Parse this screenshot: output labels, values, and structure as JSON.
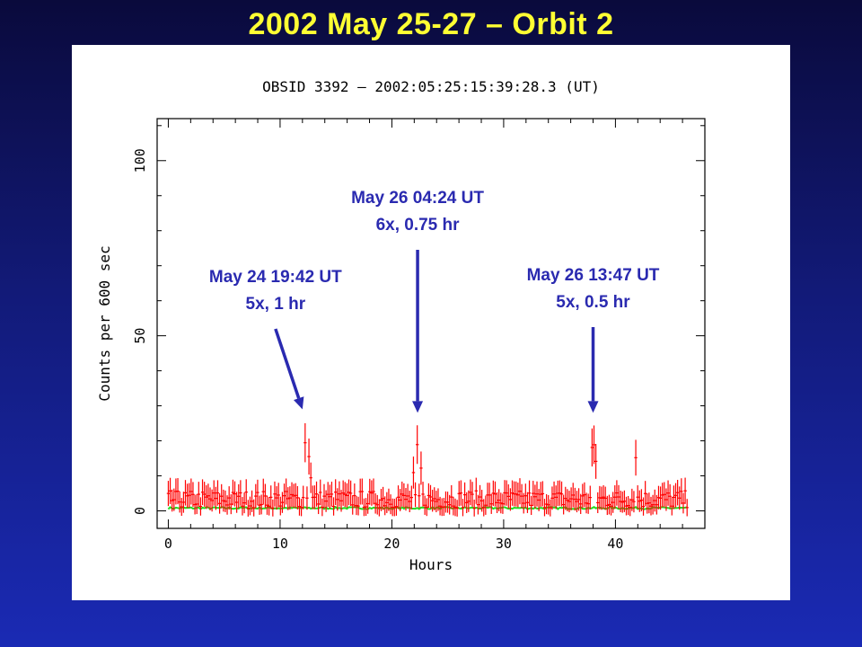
{
  "slide": {
    "title": "2002 May 25-27 – Orbit 2"
  },
  "chart_data": {
    "type": "scatter",
    "title": "OBSID 3392 – 2002:05:25:15:39:28.3 (UT)",
    "xlabel": "Hours",
    "ylabel": "Counts per 600 sec",
    "xlim": [
      -1,
      48
    ],
    "ylim": [
      -5,
      112
    ],
    "xticks": [
      0,
      10,
      20,
      30,
      40
    ],
    "yticks": [
      0,
      50,
      100
    ],
    "grid": false,
    "series": [
      {
        "color": "#ff0000",
        "style": "errorbar",
        "baseline": 3,
        "flares": [
          {
            "x": 12.2,
            "y": 20
          },
          {
            "x": 12.5,
            "y": 16
          },
          {
            "x": 12.8,
            "y": 10
          },
          {
            "x": 22.0,
            "y": 10
          },
          {
            "x": 22.3,
            "y": 18
          },
          {
            "x": 22.6,
            "y": 12
          },
          {
            "x": 38.0,
            "y": 18
          },
          {
            "x": 38.2,
            "y": 14
          },
          {
            "x": 41.8,
            "y": 16
          }
        ]
      },
      {
        "color": "#22dd22",
        "style": "line",
        "level": 0.8
      }
    ],
    "annotations": [
      {
        "line1": "May 24 19:42 UT",
        "line2": "5x, 1 hr",
        "target_x": 12.0,
        "target_y": 29
      },
      {
        "line1": "May 26 04:24 UT",
        "line2": "6x, 0.75 hr",
        "target_x": 22.3,
        "target_y": 28
      },
      {
        "line1": "May 26 13:47 UT",
        "line2": "5x, 0.5 hr",
        "target_x": 38.0,
        "target_y": 28
      }
    ]
  }
}
